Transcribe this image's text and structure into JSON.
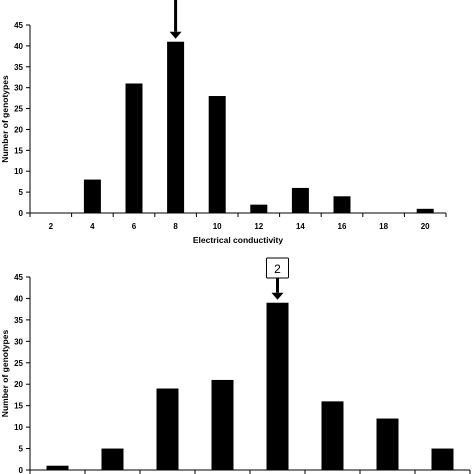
{
  "chart_data": [
    {
      "type": "bar",
      "categories": [
        "2",
        "4",
        "6",
        "8",
        "10",
        "12",
        "14",
        "16",
        "18",
        "20"
      ],
      "values": [
        0,
        8,
        31,
        41,
        28,
        2,
        6,
        4,
        0,
        1
      ],
      "xlabel": "Electrical conductivity",
      "ylabel": "Number of genotypes",
      "ylim": [
        0,
        45
      ],
      "yticks": [
        "0",
        "5",
        "10",
        "15",
        "20",
        "25",
        "30",
        "35",
        "40",
        "45"
      ],
      "bar_color": "#000000",
      "grid": false,
      "annotation": {
        "type": "arrow",
        "target_category": "8",
        "label": ""
      }
    },
    {
      "type": "bar",
      "categories": [
        "",
        "",
        "",
        "",
        "",
        "",
        "",
        ""
      ],
      "values": [
        1,
        5,
        19,
        21,
        39,
        16,
        12,
        5
      ],
      "xlabel": "",
      "ylabel": "Number of genotypes",
      "ylim": [
        0,
        45
      ],
      "yticks": [
        "0",
        "5",
        "10",
        "15",
        "20",
        "25",
        "30",
        "35",
        "40",
        "45"
      ],
      "bar_color": "#000000",
      "grid": false,
      "annotation": {
        "type": "arrow",
        "target_index": 4,
        "label": "2"
      }
    }
  ]
}
